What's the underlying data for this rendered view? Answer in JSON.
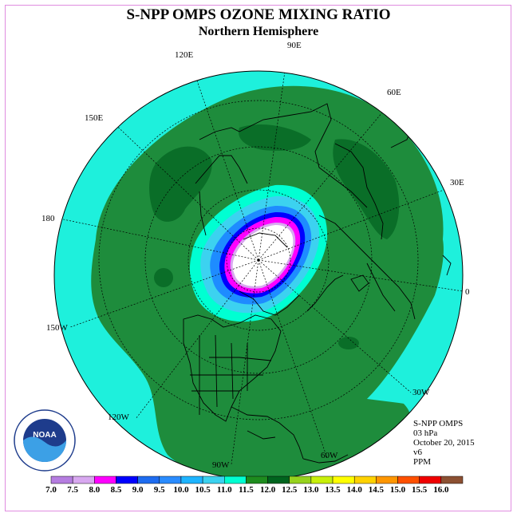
{
  "title": "S-NPP OMPS OZONE MIXING RATIO",
  "subtitle": "Northern Hemisphere",
  "longitude_labels": {
    "lon_90e": "90E",
    "lon_60e": "60E",
    "lon_30e": "30E",
    "lon_0": "0",
    "lon_30w": "30W",
    "lon_60w": "60W",
    "lon_90w": "90W",
    "lon_120w": "120W",
    "lon_150w": "150W",
    "lon_180": "180",
    "lon_150e": "150E",
    "lon_120e": "120E"
  },
  "info": {
    "instrument": "S-NPP OMPS",
    "level": "03 hPa",
    "date": "October 20, 2015",
    "version": "v6",
    "units": "PPM"
  },
  "logo_text": "NOAA",
  "colorbar": {
    "ticks": [
      "7.0",
      "7.5",
      "8.0",
      "8.5",
      "9.0",
      "9.5",
      "10.0",
      "10.5",
      "11.0",
      "11.5",
      "12.0",
      "12.5",
      "13.0",
      "13.5",
      "14.0",
      "14.5",
      "15.0",
      "15.5",
      "16.0"
    ],
    "colors": [
      "#b57de0",
      "#d8a8f0",
      "#ff00ff",
      "#0000ff",
      "#1e6cf0",
      "#2a8cff",
      "#1eb4ff",
      "#3cd2f0",
      "#00ffd2",
      "#1e8c1e",
      "#00641e",
      "#96d21e",
      "#c8f00a",
      "#ffff00",
      "#ffd200",
      "#ff9600",
      "#ff5000",
      "#f00000",
      "#8c5032"
    ]
  },
  "colors": {
    "background_low": "#1ef0dc",
    "mid_green": "#1e8c3c",
    "dark_green": "#0a6e28",
    "pole_white": "#ffffff",
    "frame": "#e08ce0"
  }
}
